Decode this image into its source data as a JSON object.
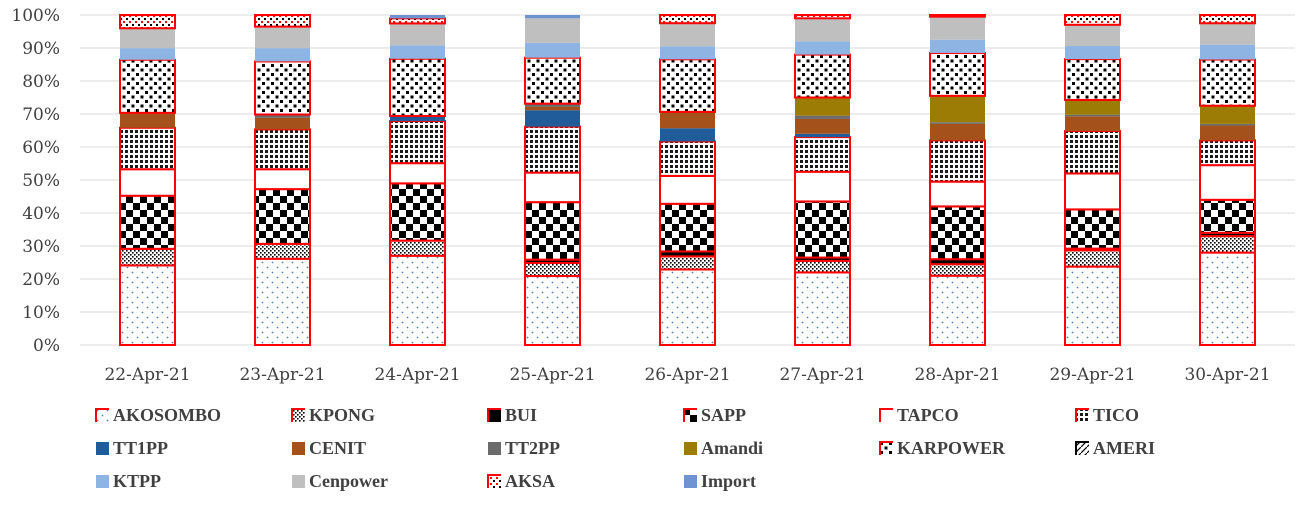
{
  "chart_data": {
    "type": "bar",
    "stacked": true,
    "percent": true,
    "categories": [
      "22-Apr-21",
      "23-Apr-21",
      "24-Apr-21",
      "25-Apr-21",
      "26-Apr-21",
      "27-Apr-21",
      "28-Apr-21",
      "29-Apr-21",
      "30-Apr-21"
    ],
    "ylim": [
      0,
      100
    ],
    "yticks": [
      "0%",
      "10%",
      "20%",
      "30%",
      "40%",
      "50%",
      "60%",
      "70%",
      "80%",
      "90%",
      "100%"
    ],
    "grid": true,
    "legend_position": "bottom",
    "series": [
      {
        "name": "AKOSOMBO",
        "values": [
          24,
          26,
          26.5,
          21,
          23,
          22,
          21,
          24,
          28
        ],
        "color": "#ffffff",
        "outline": "#ff0000",
        "pattern": "dots-blue"
      },
      {
        "name": "KPONG",
        "values": [
          5,
          4.5,
          4.5,
          4,
          4,
          3.5,
          3.5,
          5,
          5
        ],
        "color": "#ffffff",
        "outline": "#ff0000",
        "pattern": "dense-dots"
      },
      {
        "name": "BUI",
        "values": [
          0,
          0,
          0,
          1,
          1.5,
          1,
          1.5,
          0.5,
          1
        ],
        "color": "#000000",
        "outline": "#ff0000",
        "pattern": "solid"
      },
      {
        "name": "SAPP",
        "values": [
          16,
          16.5,
          17,
          17.5,
          14.5,
          17,
          16,
          12,
          10
        ],
        "color": "#ffffff",
        "outline": "#ff0000",
        "pattern": "checker"
      },
      {
        "name": "TAPCO",
        "values": [
          8,
          6,
          6,
          9,
          8.5,
          9,
          7.5,
          11,
          10.5
        ],
        "color": "#ffffff",
        "outline": "#ff0000",
        "pattern": "none"
      },
      {
        "name": "TICO",
        "values": [
          12.5,
          12,
          12.5,
          14,
          10.5,
          10.5,
          12.5,
          13,
          7.5
        ],
        "color": "#ffffff",
        "outline": "#ff0000",
        "pattern": "grid"
      },
      {
        "name": "TT1PP",
        "values": [
          0,
          0,
          1.5,
          5,
          4,
          1,
          0,
          0,
          0
        ],
        "color": "#1f5c99",
        "outline": "none",
        "pattern": "solid"
      },
      {
        "name": "CENIT",
        "values": [
          4.5,
          3.5,
          0,
          1,
          5,
          4.5,
          5,
          4.5,
          4.5
        ],
        "color": "#a5511b",
        "outline": "none",
        "pattern": "solid"
      },
      {
        "name": "TT2PP",
        "values": [
          0,
          1,
          0,
          1,
          0,
          1,
          0.5,
          0.5,
          0.5
        ],
        "color": "#6b6b6b",
        "outline": "none",
        "pattern": "solid"
      },
      {
        "name": "Amandi",
        "values": [
          0,
          0,
          0,
          0,
          0,
          5.5,
          8,
          4.5,
          5.5
        ],
        "color": "#9c7c04",
        "outline": "none",
        "pattern": "solid"
      },
      {
        "name": "KARPOWER",
        "values": [
          16,
          16,
          17,
          14,
          16,
          13,
          13,
          12.5,
          14
        ],
        "color": "#ffffff",
        "outline": "#ff0000",
        "pattern": "black-dots"
      },
      {
        "name": "AMERI",
        "values": [
          0,
          0,
          0,
          0,
          0,
          0,
          0,
          0,
          0
        ],
        "color": "#ffffff",
        "outline": "#000000",
        "pattern": "diag"
      },
      {
        "name": "KTPP",
        "values": [
          3.5,
          4,
          4,
          4.5,
          4,
          4,
          4,
          4,
          4.5
        ],
        "color": "#8db4e2",
        "outline": "none",
        "pattern": "solid"
      },
      {
        "name": "Cenpower",
        "values": [
          6,
          6.5,
          6.5,
          7.5,
          7,
          7,
          7,
          6.5,
          6.5
        ],
        "color": "#bfbfbf",
        "outline": "none",
        "pattern": "solid"
      },
      {
        "name": "AKSA",
        "values": [
          4,
          3.5,
          1.5,
          0,
          2.5,
          1,
          0.5,
          3,
          2.5
        ],
        "color": "#ffffff",
        "outline": "#ff0000",
        "pattern": "diag-red"
      },
      {
        "name": "Import",
        "values": [
          0,
          0,
          1,
          1,
          0,
          0,
          0,
          0,
          0
        ],
        "color": "#6f93d0",
        "outline": "none",
        "pattern": "solid"
      }
    ]
  }
}
